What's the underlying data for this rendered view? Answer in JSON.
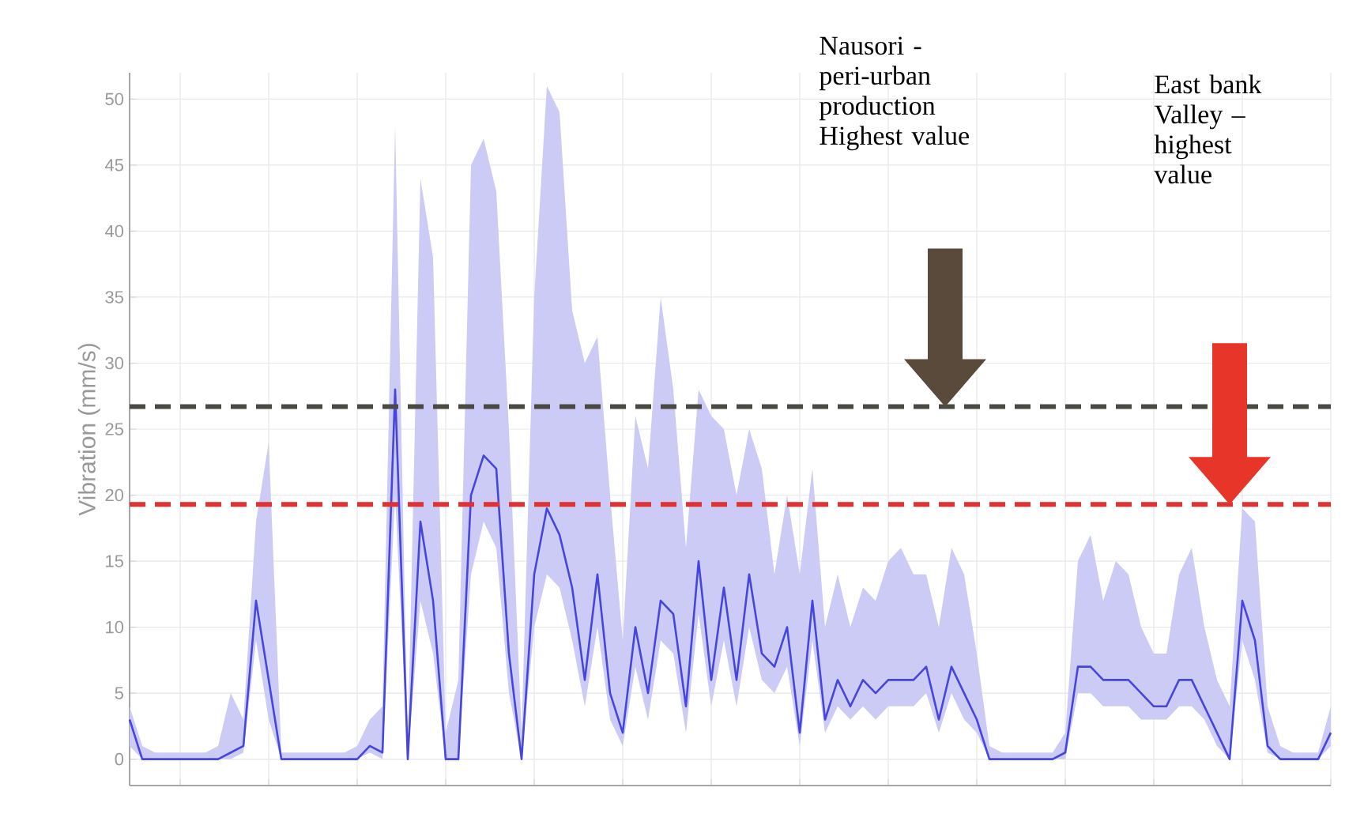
{
  "chart_data": {
    "type": "line",
    "ylabel": "Vibration (mm/s)",
    "categories": [
      null,
      null,
      null,
      null,
      null,
      null,
      null,
      null,
      null,
      null,
      null,
      null,
      null,
      null,
      null,
      null,
      null,
      null,
      null,
      null,
      null,
      null,
      null,
      null,
      null,
      null,
      null,
      null,
      null,
      null,
      null,
      null,
      null,
      null,
      null,
      null,
      null,
      null,
      null,
      null,
      null,
      null,
      null,
      null,
      null,
      null,
      null,
      null,
      null,
      null,
      null,
      null,
      null,
      null,
      null,
      null,
      null,
      null,
      null,
      null,
      null,
      null,
      null,
      null,
      null,
      null,
      null,
      null,
      null,
      null,
      null,
      null,
      null,
      null,
      null,
      null,
      null,
      null,
      null,
      null,
      null,
      null,
      null,
      null,
      null,
      null,
      null,
      null,
      null,
      null,
      null,
      null,
      null,
      null,
      null,
      null
    ],
    "series": [
      {
        "color": "#4646dc",
        "values": [
          3,
          0,
          0,
          0,
          0,
          0,
          0,
          0,
          0.5,
          1,
          12,
          6,
          0,
          0,
          0,
          0,
          0,
          0,
          0,
          1,
          0.5,
          28,
          0,
          18,
          12,
          0,
          0,
          20,
          23,
          22,
          8,
          0,
          14,
          19,
          17,
          13,
          6,
          14,
          5,
          2,
          10,
          5,
          12,
          11,
          4,
          15,
          6,
          13,
          6,
          14,
          8,
          7,
          10,
          2,
          12,
          3,
          6,
          4,
          6,
          5,
          6,
          6,
          6,
          7,
          3,
          7,
          5,
          3,
          0,
          0,
          0,
          0,
          0,
          0,
          0.5,
          7,
          7,
          6,
          6,
          6,
          5,
          4,
          4,
          6,
          6,
          4,
          2,
          0,
          12,
          9,
          1,
          0,
          0,
          0,
          0,
          2
        ],
        "lower": [
          1,
          0,
          0,
          0,
          0,
          0,
          0,
          0,
          0,
          0.5,
          9,
          3,
          0,
          0,
          0,
          0,
          0,
          0,
          0,
          0.5,
          0,
          20,
          0,
          12,
          8,
          0,
          0,
          14,
          18,
          16,
          5,
          0,
          10,
          14,
          13,
          9,
          4,
          10,
          3,
          1,
          7,
          3,
          9,
          8,
          2,
          11,
          4,
          9,
          4,
          10,
          6,
          5,
          7,
          1,
          9,
          2,
          4,
          3,
          4,
          3,
          4,
          4,
          4,
          5,
          2,
          5,
          3,
          2,
          0,
          0,
          0,
          0,
          0,
          0,
          0,
          5,
          5,
          4,
          4,
          4,
          3,
          3,
          3,
          4,
          4,
          3,
          1,
          0,
          9,
          6,
          0.5,
          0,
          0,
          0,
          0,
          1
        ],
        "upper": [
          4,
          1,
          0.5,
          0.5,
          0.5,
          0.5,
          0.5,
          1,
          5,
          3,
          18,
          24,
          0.5,
          0.5,
          0.5,
          0.5,
          0.5,
          0.5,
          1,
          3,
          4,
          48,
          1,
          44,
          38,
          2,
          6,
          45,
          47,
          43,
          25,
          2,
          35,
          51,
          49,
          34,
          30,
          32,
          20,
          9,
          26,
          22,
          35,
          28,
          16,
          28,
          26,
          25,
          20,
          25,
          22,
          14,
          20,
          14,
          22,
          10,
          14,
          10,
          13,
          12,
          15,
          16,
          14,
          14,
          10,
          16,
          14,
          8,
          1,
          0.5,
          0.5,
          0.5,
          0.5,
          0.5,
          2,
          15,
          17,
          12,
          15,
          14,
          10,
          8,
          8,
          14,
          16,
          10,
          6,
          4,
          19,
          18,
          4,
          1,
          0.5,
          0.5,
          0.5,
          4
        ]
      }
    ],
    "ylim": [
      -2,
      52
    ],
    "yticks": [
      0,
      5,
      10,
      15,
      20,
      25,
      30,
      35,
      40,
      45,
      50
    ],
    "grid": true,
    "marker": "none",
    "ref_lines": [
      {
        "axis": "y",
        "value": 26.7,
        "color": "#4a4a42",
        "line_style": "dashed"
      },
      {
        "axis": "y",
        "value": 19.3,
        "color": "#e03232",
        "line_style": "dashed"
      }
    ],
    "annotations": [
      "Nausori -peri-urban production Highest value",
      "East bank Valley – highest value"
    ]
  }
}
